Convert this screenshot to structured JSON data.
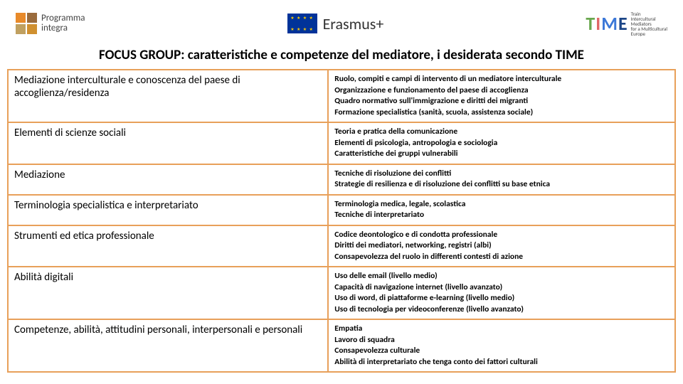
{
  "header": {
    "programma_label": "Programma",
    "integra_label": "integra",
    "erasmus_label": "Erasmus+",
    "time_letters": "TIME",
    "time_sub_lines": [
      "Train",
      "Intercultural",
      "Mediators",
      "for a Multicultural",
      "Europe"
    ],
    "colors": {
      "sq1": "#e88a2a",
      "sq2": "#9a6b3c",
      "sq3": "#c0a060",
      "sq4": "#d09030",
      "t": "#6aa84f",
      "i": "#e06666",
      "m": "#3c78d8",
      "e": "#1c4587",
      "border": "#e8a05a"
    }
  },
  "title": "FOCUS GROUP: caratteristiche e competenze del mediatore, i desiderata secondo TIME",
  "rows": [
    {
      "left": "Mediazione interculturale e conoscenza del paese di accoglienza/residenza",
      "right": [
        "Ruolo, compiti e campi di intervento di un mediatore interculturale",
        "Organizzazione e funzionamento del paese di accoglienza",
        "Quadro normativo sull'immigrazione e diritti dei migranti",
        "Formazione specialistica (sanità, scuola, assistenza sociale)"
      ]
    },
    {
      "left": "Elementi di scienze sociali",
      "right": [
        "Teoria e pratica della comunicazione",
        "Elementi di psicologia, antropologia e sociologia",
        "Caratteristiche dei gruppi vulnerabili"
      ]
    },
    {
      "left": "Mediazione",
      "right": [
        "Tecniche di risoluzione dei conflitti",
        "Strategie di resilienza e di risoluzione dei conflitti su base etnica"
      ]
    },
    {
      "left": "Terminologia specialistica e interpretariato",
      "right": [
        "Terminologia medica, legale, scolastica",
        "Tecniche di interpretariato"
      ]
    },
    {
      "left": "Strumenti ed etica professionale",
      "right": [
        "Codice deontologico e di condotta professionale",
        "Diritti dei mediatori, networking, registri (albi)",
        "Consapevolezza del ruolo in differenti contesti di azione"
      ]
    },
    {
      "left": "Abilità digitali",
      "right": [
        "Uso delle email (livello medio)",
        "Capacità di navigazione internet  (livello avanzato)",
        "Uso di word, di piattaforme e-learning (livello medio)",
        "Uso di tecnologia per videoconferenze (livello avanzato)"
      ]
    },
    {
      "left": "Competenze, abilità, attitudini personali, interpersonali e personali",
      "right": [
        "Empatia",
        "Lavoro di squadra",
        "Consapevolezza culturale",
        "Abilità di interpretariato che tenga conto dei fattori culturali"
      ]
    }
  ]
}
